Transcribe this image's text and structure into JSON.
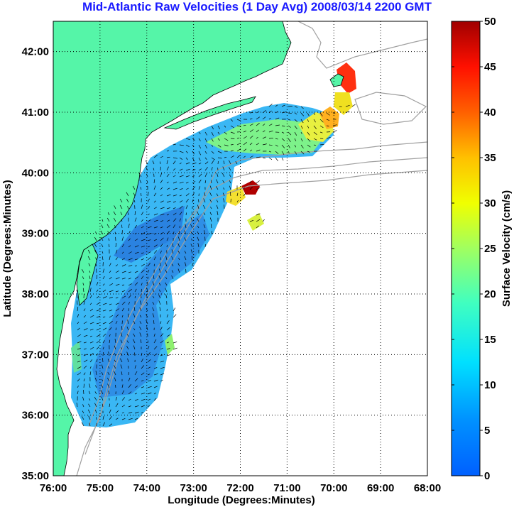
{
  "title": "Mid-Atlantic Raw Velocities (1 Day Avg) 2008/03/14 2200 GMT",
  "xlabel": "Longitude (Degrees:Minutes)",
  "ylabel": "Latitude (Degrees:Minutes)",
  "colorbar": {
    "label": "Surface Velocity (cm/s)",
    "ticks": [
      "0",
      "5",
      "10",
      "15",
      "20",
      "25",
      "30",
      "35",
      "40",
      "45",
      "50"
    ],
    "range": [
      0,
      50
    ],
    "colormap": "jet"
  },
  "colors": {
    "land": "#55f5a8",
    "title": "#1a1aff",
    "bathymetry": "#a0a0a0"
  },
  "chart_data": {
    "type": "heatmap",
    "title": "Mid-Atlantic Raw Velocities (1 Day Avg) 2008/03/14 2200 GMT",
    "xlabel": "Longitude (Degrees:Minutes)",
    "ylabel": "Latitude (Degrees:Minutes)",
    "xlim": [
      -76,
      -68
    ],
    "ylim": [
      35,
      42.5
    ],
    "grid": true,
    "x_ticks": [
      "76:00",
      "75:00",
      "74:00",
      "73:00",
      "72:00",
      "71:00",
      "70:00",
      "69:00",
      "68:00"
    ],
    "y_ticks": [
      "35:00",
      "36:00",
      "37:00",
      "38:00",
      "39:00",
      "40:00",
      "41:00",
      "42:00"
    ],
    "x_tick_values": [
      -76,
      -75,
      -74,
      -73,
      -72,
      -71,
      -70,
      -69,
      -68
    ],
    "y_tick_values": [
      35,
      36,
      37,
      38,
      39,
      40,
      41,
      42
    ],
    "colorbar_label": "Surface Velocity (cm/s)",
    "colorbar_range": [
      0,
      50
    ]
  }
}
